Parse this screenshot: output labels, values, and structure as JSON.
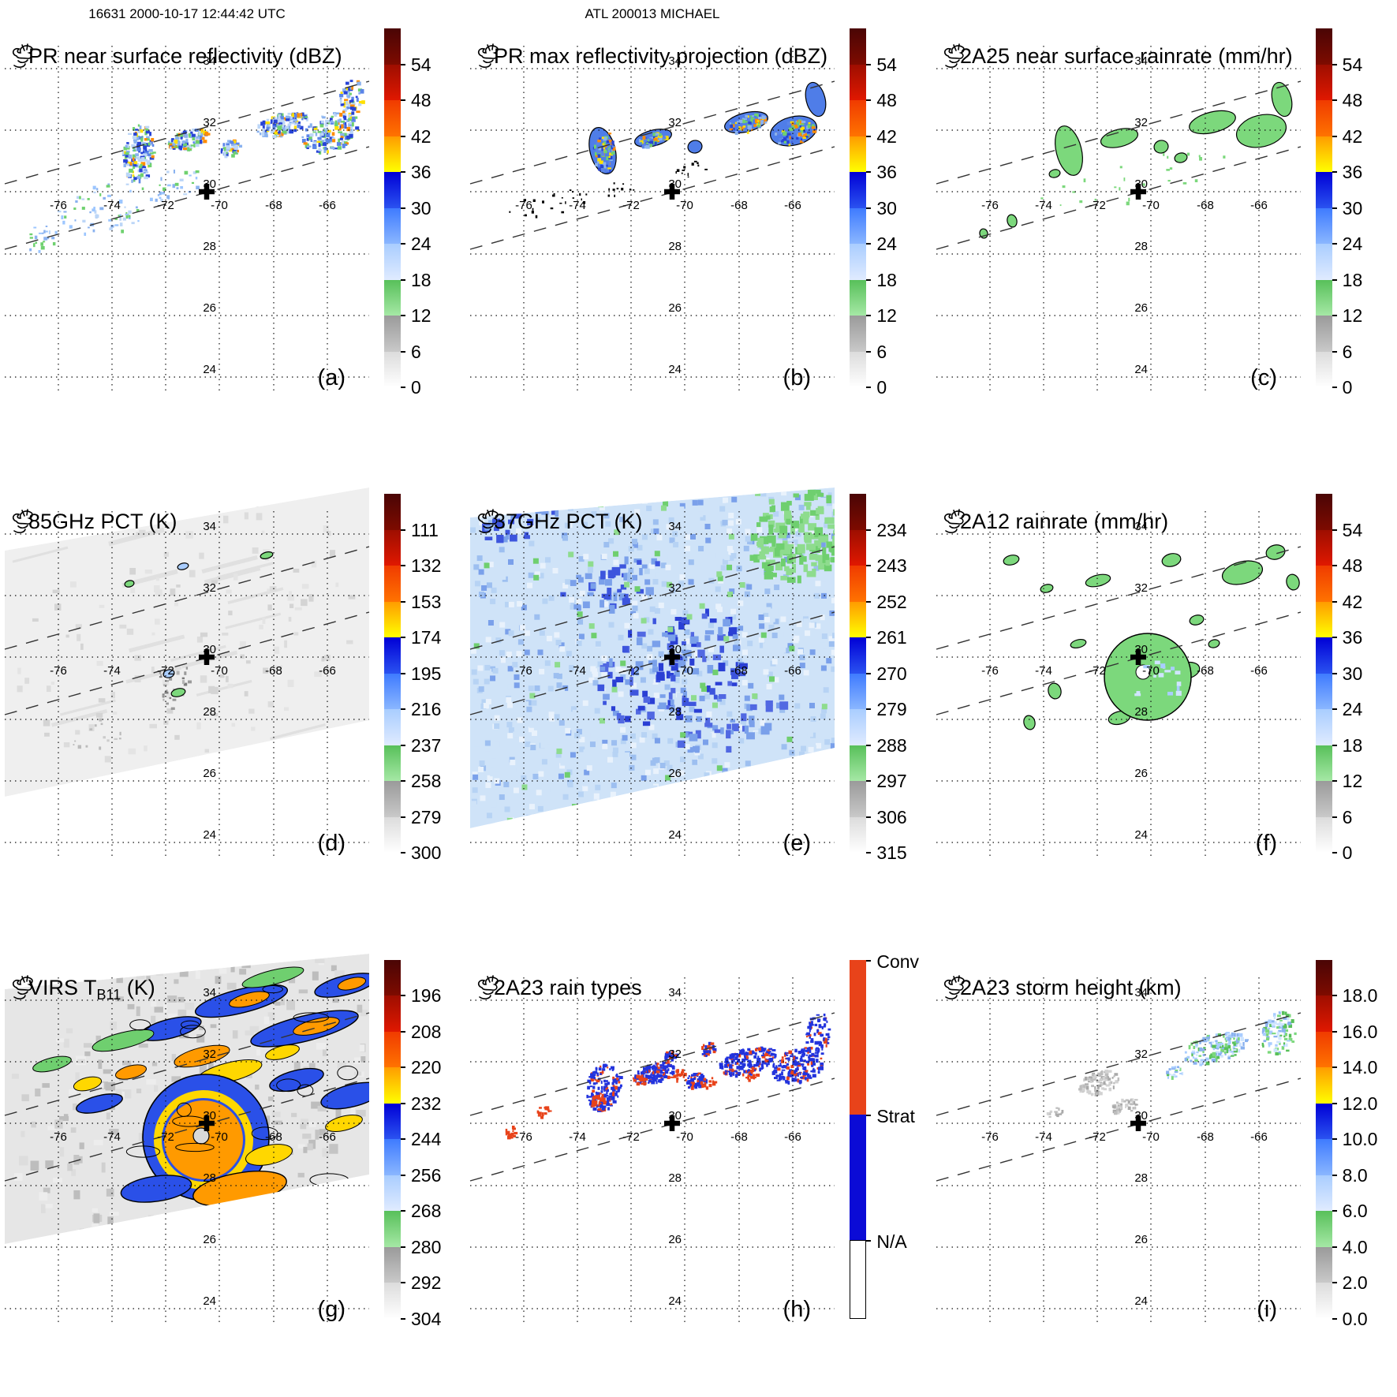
{
  "headers": {
    "left": "16631 2000-10-17 12:44:42 UTC",
    "center": "ATL 200013 MICHAEL"
  },
  "map": {
    "lat_labels": [
      "34",
      "32",
      "30",
      "28",
      "26",
      "24"
    ],
    "lon_labels": [
      "-76",
      "-74",
      "-72",
      "-70",
      "-68",
      "-66"
    ],
    "storm_marker": "+"
  },
  "colorbars": {
    "dbz": [
      "54",
      "48",
      "42",
      "36",
      "30",
      "24",
      "18",
      "12",
      "6",
      "0"
    ],
    "rain": [
      "54",
      "48",
      "42",
      "36",
      "30",
      "24",
      "18",
      "12",
      "6",
      "0"
    ],
    "pct85": [
      "111",
      "132",
      "153",
      "174",
      "195",
      "216",
      "237",
      "258",
      "279",
      "300"
    ],
    "pct37": [
      "234",
      "243",
      "252",
      "261",
      "270",
      "279",
      "288",
      "297",
      "306",
      "315"
    ],
    "virs": [
      "196",
      "208",
      "220",
      "232",
      "244",
      "256",
      "268",
      "280",
      "292",
      "304"
    ],
    "height": [
      "18.0",
      "16.0",
      "14.0",
      "12.0",
      "10.0",
      "8.0",
      "6.0",
      "4.0",
      "2.0",
      "0.0"
    ],
    "raintype": [
      "Conv",
      "Strat",
      "N/A"
    ]
  },
  "ramp": [
    [
      "#4a0505",
      "#7e0b00"
    ],
    [
      "#9e0e00",
      "#e01800"
    ],
    [
      "#f03b00",
      "#ff7300"
    ],
    [
      "#ff9c00",
      "#ffff00"
    ],
    [
      "#0000d6",
      "#2a52f0"
    ],
    [
      "#3f7bff",
      "#8ab6ff"
    ],
    [
      "#a9cdff",
      "#e0ebff"
    ],
    [
      "#58c05a",
      "#a5e8a5"
    ],
    [
      "#9a9a9a",
      "#c9c9c9"
    ],
    [
      "#dcdcdc",
      "#ffffff"
    ]
  ],
  "raintype_colors": {
    "conv": "#e8431a",
    "strat": "#0b0bd6",
    "na": "#ffffff"
  },
  "panels": [
    {
      "id": "a",
      "letter": "(a)",
      "title": "PR near surface reflectivity (dBZ)",
      "cbar": "dbz",
      "art": "prA"
    },
    {
      "id": "b",
      "letter": "(b)",
      "title": "PR max reflectivity projection (dBZ)",
      "cbar": "dbz",
      "art": "prB"
    },
    {
      "id": "c",
      "letter": "(c)",
      "title": "2A25 near surface rainrate (mm/hr)",
      "cbar": "rain",
      "art": "rr25"
    },
    {
      "id": "d",
      "letter": "(d)",
      "title": "85GHz PCT (K)",
      "cbar": "pct85",
      "art": "p85"
    },
    {
      "id": "e",
      "letter": "(e)",
      "title": "37GHz PCT (K)",
      "cbar": "pct37",
      "art": "p37"
    },
    {
      "id": "f",
      "letter": "(f)",
      "title": "2A12 rainrate (mm/hr)",
      "cbar": "rain",
      "art": "rr12"
    },
    {
      "id": "g",
      "letter": "(g)",
      "title": "VIRS TB11 (K)",
      "title_parts": {
        "pre": "VIRS T",
        "sub": "B11",
        "post": " (K)"
      },
      "cbar": "virs",
      "art": "virs"
    },
    {
      "id": "h",
      "letter": "(h)",
      "title": "2A23 rain types",
      "cbar": "raintype",
      "art": "rtype"
    },
    {
      "id": "i",
      "letter": "(i)",
      "title": "2A23 storm height (km)",
      "cbar": "height",
      "art": "hgt"
    }
  ],
  "chart_data": {
    "type": "heatmap",
    "figure": "TRMM overpass nine-panel storm diagnostic, 3x3 map panels with colorbars",
    "storm": {
      "orbit": "16631",
      "time_utc": "2000-10-17 12:44:42",
      "basin_id": "ATL 200013",
      "name": "MICHAEL",
      "center_marker": {
        "lon": -70.5,
        "lat": 30.0
      }
    },
    "grid": {
      "lon_ticks": [
        -76,
        -74,
        -72,
        -70,
        -68,
        -66
      ],
      "lat_ticks": [
        24,
        26,
        28,
        30,
        32,
        34
      ],
      "gridlines": "dotted",
      "swath_edges": "dashed diagonal lines rising to the northeast"
    },
    "panels": [
      {
        "panel": "a",
        "title": "PR near surface reflectivity",
        "units": "dBZ",
        "colorbar_ticks": [
          54,
          48,
          42,
          36,
          30,
          24,
          18,
          12,
          6,
          0
        ]
      },
      {
        "panel": "b",
        "title": "PR max reflectivity projection",
        "units": "dBZ",
        "colorbar_ticks": [
          54,
          48,
          42,
          36,
          30,
          24,
          18,
          12,
          6,
          0
        ]
      },
      {
        "panel": "c",
        "title": "2A25 near surface rainrate",
        "units": "mm/hr",
        "colorbar_ticks": [
          54,
          48,
          42,
          36,
          30,
          24,
          18,
          12,
          6,
          0
        ]
      },
      {
        "panel": "d",
        "title": "85GHz PCT",
        "units": "K",
        "colorbar_ticks": [
          111,
          132,
          153,
          174,
          195,
          216,
          237,
          258,
          279,
          300
        ]
      },
      {
        "panel": "e",
        "title": "37GHz PCT",
        "units": "K",
        "colorbar_ticks": [
          234,
          243,
          252,
          261,
          270,
          279,
          288,
          297,
          306,
          315
        ]
      },
      {
        "panel": "f",
        "title": "2A12 rainrate",
        "units": "mm/hr",
        "colorbar_ticks": [
          54,
          48,
          42,
          36,
          30,
          24,
          18,
          12,
          6,
          0
        ]
      },
      {
        "panel": "g",
        "title": "VIRS TB11",
        "units": "K",
        "colorbar_ticks": [
          196,
          208,
          220,
          232,
          244,
          256,
          268,
          280,
          292,
          304
        ]
      },
      {
        "panel": "h",
        "title": "2A23 rain types",
        "units": "category",
        "categories": [
          "Conv",
          "Strat",
          "N/A"
        ]
      },
      {
        "panel": "i",
        "title": "2A23 storm height",
        "units": "km",
        "colorbar_ticks": [
          18.0,
          16.0,
          14.0,
          12.0,
          10.0,
          8.0,
          6.0,
          4.0,
          2.0,
          0.0
        ]
      }
    ]
  }
}
